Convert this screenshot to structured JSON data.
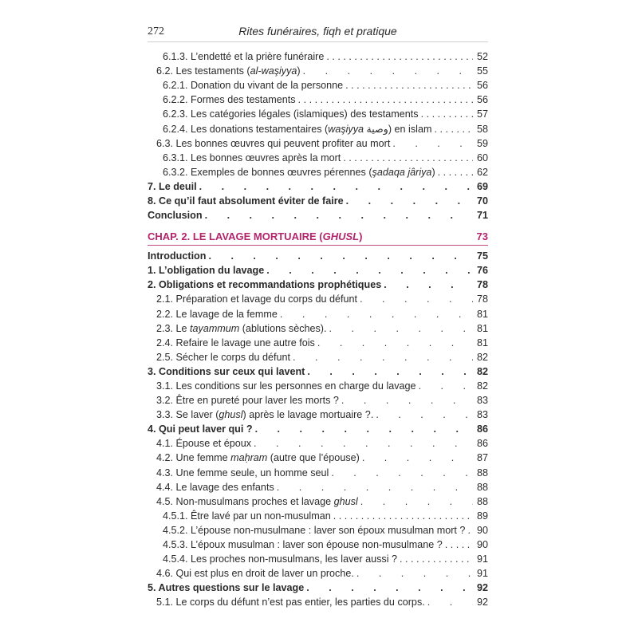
{
  "header": {
    "page_number": "272",
    "running_title": "Rites funéraires, fiqh et pratique"
  },
  "accent_color": "#b3246d",
  "entries_before": [
    {
      "level": 2,
      "parts": [
        {
          "t": "6.1.3. L’endetté et la prière funéraire"
        }
      ],
      "page": "52"
    },
    {
      "level": 1,
      "sp": true,
      "parts": [
        {
          "t": "6.2. Les testaments ("
        },
        {
          "t": "al-waşiyya",
          "i": true
        },
        {
          "t": ")"
        }
      ],
      "page": "55"
    },
    {
      "level": 2,
      "parts": [
        {
          "t": "6.2.1. Donation du vivant de la personne"
        }
      ],
      "page": "56"
    },
    {
      "level": 2,
      "parts": [
        {
          "t": "6.2.2. Formes des testaments"
        }
      ],
      "page": "56"
    },
    {
      "level": 2,
      "parts": [
        {
          "t": "6.2.3. Les catégories légales (islamiques) des testaments"
        }
      ],
      "page": "57"
    },
    {
      "level": 2,
      "parts": [
        {
          "t": "6.2.4. Les donations testamentaires ("
        },
        {
          "t": "waşiyya",
          "i": true
        },
        {
          "t": " وصية) en islam"
        }
      ],
      "page": "58"
    },
    {
      "level": 1,
      "sp": true,
      "parts": [
        {
          "t": "6.3. Les bonnes œuvres qui peuvent profiter au mort"
        }
      ],
      "page": "59"
    },
    {
      "level": 2,
      "parts": [
        {
          "t": "6.3.1. Les bonnes œuvres après la mort"
        }
      ],
      "page": "60"
    },
    {
      "level": 2,
      "parts": [
        {
          "t": "6.3.2. Exemples de bonnes œuvres pérennes ("
        },
        {
          "t": "şadaqa jâriya",
          "i": true
        },
        {
          "t": ")"
        }
      ],
      "page": "62"
    },
    {
      "level": 0,
      "parts": [
        {
          "t": "7. Le deuil"
        }
      ],
      "page": "69"
    },
    {
      "level": 0,
      "parts": [
        {
          "t": "8. Ce qu’il faut absolument éviter de faire"
        }
      ],
      "page": "70"
    },
    {
      "level": 0,
      "parts": [
        {
          "t": "Conclusion"
        }
      ],
      "page": "71"
    }
  ],
  "chapter": {
    "title": "CHAP. 2. LE LAVAGE MORTUAIRE (",
    "title_italic": "GHUSL",
    "title_end": ")",
    "page": "73"
  },
  "entries_after": [
    {
      "level": 0,
      "parts": [
        {
          "t": "Introduction"
        }
      ],
      "page": "75"
    },
    {
      "level": 0,
      "parts": [
        {
          "t": "1. L’obligation du lavage"
        }
      ],
      "page": "76"
    },
    {
      "level": 0,
      "parts": [
        {
          "t": "2. Obligations et recommandations prophétiques"
        }
      ],
      "page": "78"
    },
    {
      "level": 1,
      "sp": true,
      "parts": [
        {
          "t": "2.1. Préparation et lavage du corps du défunt"
        }
      ],
      "page": "78"
    },
    {
      "level": 1,
      "sp": true,
      "parts": [
        {
          "t": "2.2. Le lavage de la femme"
        }
      ],
      "page": "81"
    },
    {
      "level": 1,
      "sp": true,
      "parts": [
        {
          "t": "2.3. Le "
        },
        {
          "t": "tayammum",
          "i": true
        },
        {
          "t": " (ablutions sèches)."
        }
      ],
      "page": "81"
    },
    {
      "level": 1,
      "sp": true,
      "parts": [
        {
          "t": "2.4. Refaire le lavage une autre fois"
        }
      ],
      "page": "81"
    },
    {
      "level": 1,
      "sp": true,
      "parts": [
        {
          "t": "2.5. Sécher le corps du défunt"
        }
      ],
      "page": "82"
    },
    {
      "level": 0,
      "parts": [
        {
          "t": "3. Conditions sur ceux qui lavent"
        }
      ],
      "page": "82"
    },
    {
      "level": 1,
      "sp": true,
      "parts": [
        {
          "t": "3.1. Les conditions sur les personnes en charge du lavage"
        }
      ],
      "page": "82"
    },
    {
      "level": 1,
      "sp": true,
      "parts": [
        {
          "t": "3.2. Être en pureté pour laver les morts ?"
        }
      ],
      "page": "83"
    },
    {
      "level": 1,
      "sp": true,
      "parts": [
        {
          "t": "3.3. Se laver ("
        },
        {
          "t": "ghusl",
          "i": true
        },
        {
          "t": ") après le lavage mortuaire ?."
        }
      ],
      "page": "83"
    },
    {
      "level": 0,
      "parts": [
        {
          "t": "4. Qui peut laver qui ?"
        }
      ],
      "page": "86"
    },
    {
      "level": 1,
      "sp": true,
      "parts": [
        {
          "t": "4.1. Épouse et époux"
        }
      ],
      "page": "86"
    },
    {
      "level": 1,
      "sp": true,
      "parts": [
        {
          "t": "4.2. Une femme "
        },
        {
          "t": "maḥram",
          "i": true
        },
        {
          "t": " (autre que l’épouse)"
        }
      ],
      "page": "87"
    },
    {
      "level": 1,
      "sp": true,
      "parts": [
        {
          "t": "4.3. Une femme seule, un homme seul"
        }
      ],
      "page": "88"
    },
    {
      "level": 1,
      "sp": true,
      "parts": [
        {
          "t": "4.4. Le lavage des enfants"
        }
      ],
      "page": "88"
    },
    {
      "level": 1,
      "sp": true,
      "parts": [
        {
          "t": "4.5. Non-musulmans proches et lavage "
        },
        {
          "t": "ghusl",
          "i": true
        }
      ],
      "page": "88"
    },
    {
      "level": 2,
      "parts": [
        {
          "t": "4.5.1. Être lavé par un non-musulman"
        }
      ],
      "page": "89"
    },
    {
      "level": 2,
      "parts": [
        {
          "t": "4.5.2. L’épouse non-musulmane : laver son époux musulman mort ?"
        }
      ],
      "page": "90"
    },
    {
      "level": 2,
      "parts": [
        {
          "t": "4.5.3. L’époux musulman : laver son épouse non-musulmane ?"
        }
      ],
      "page": "90"
    },
    {
      "level": 2,
      "parts": [
        {
          "t": "4.5.4. Les proches non-musulmans, les laver aussi ?"
        }
      ],
      "page": "91"
    },
    {
      "level": 1,
      "sp": true,
      "parts": [
        {
          "t": "4.6. Qui est plus en droit de laver un proche."
        }
      ],
      "page": "91"
    },
    {
      "level": 0,
      "parts": [
        {
          "t": "5. Autres questions sur le lavage"
        }
      ],
      "page": "92"
    },
    {
      "level": 1,
      "sp": true,
      "parts": [
        {
          "t": "5.1. Le corps du défunt n’est pas entier, les parties du corps."
        }
      ],
      "page": "92"
    }
  ]
}
